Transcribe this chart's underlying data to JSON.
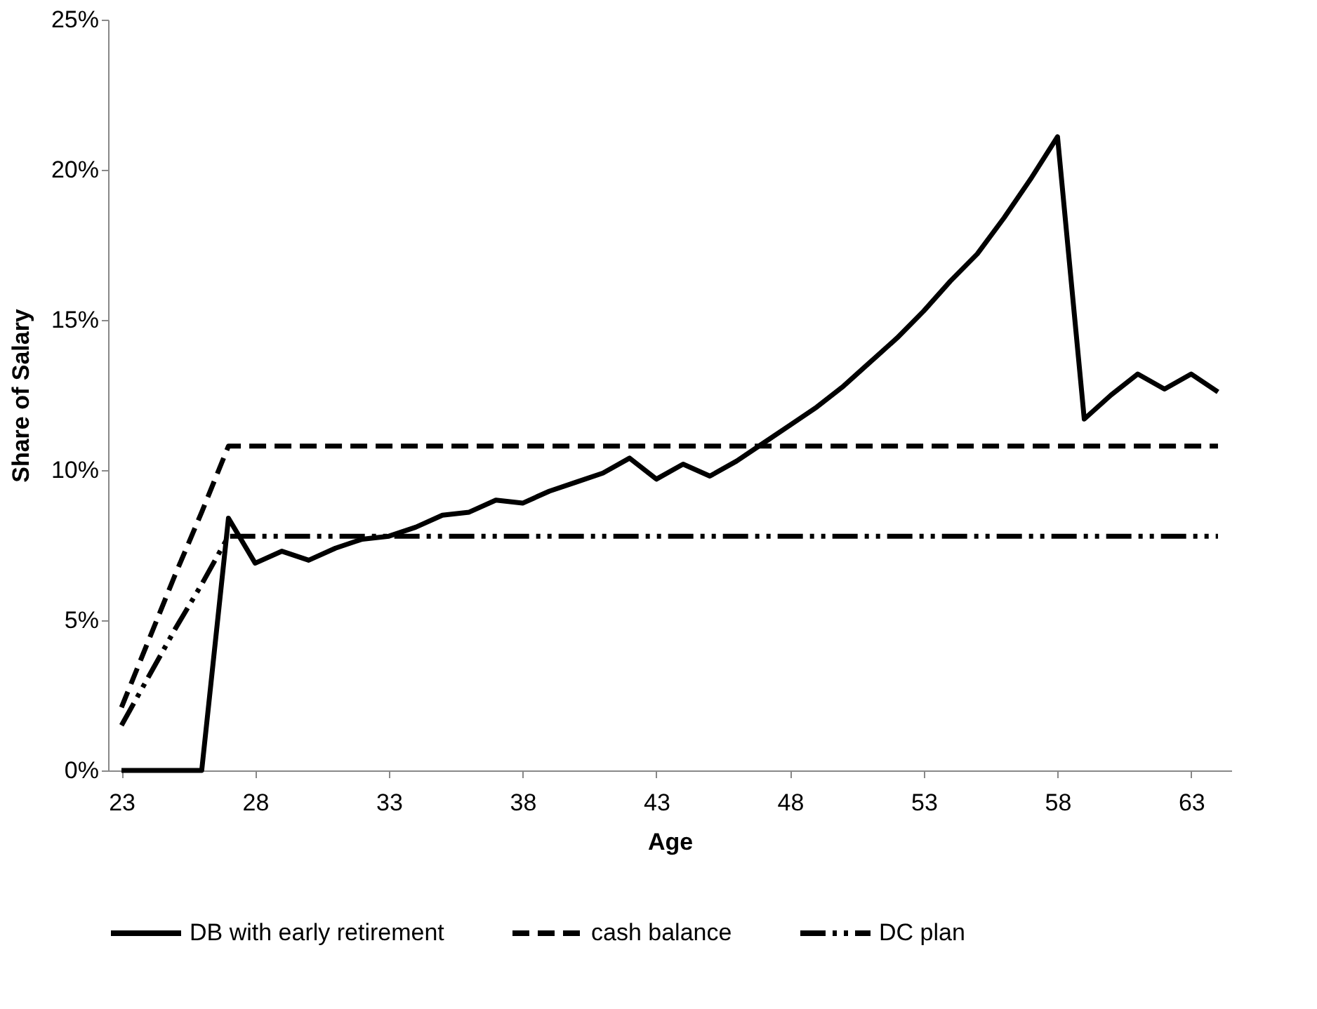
{
  "chart_data": {
    "type": "line",
    "xlabel": "Age",
    "ylabel": "Share of Salary",
    "x": [
      23,
      24,
      25,
      26,
      27,
      28,
      29,
      30,
      31,
      32,
      33,
      34,
      35,
      36,
      37,
      38,
      39,
      40,
      41,
      42,
      43,
      44,
      45,
      46,
      47,
      48,
      49,
      50,
      51,
      52,
      53,
      54,
      55,
      56,
      57,
      58,
      59,
      60,
      61,
      62,
      63,
      64
    ],
    "series": [
      {
        "name": "DB with early retirement",
        "color": "#000000",
        "line_style": "solid",
        "values": [
          0,
          0,
          0,
          0,
          8.4,
          6.9,
          7.3,
          7.0,
          7.4,
          7.7,
          7.8,
          8.1,
          8.5,
          8.6,
          9.0,
          8.9,
          9.3,
          9.6,
          9.9,
          10.4,
          9.7,
          10.2,
          9.8,
          10.3,
          10.9,
          11.5,
          12.1,
          12.8,
          13.6,
          14.4,
          15.3,
          16.3,
          17.2,
          18.4,
          19.7,
          21.1,
          11.7,
          12.5,
          13.2,
          12.7,
          13.2,
          12.6
        ]
      },
      {
        "name": "cash balance",
        "color": "#000000",
        "line_style": "dashed",
        "values": [
          2.1,
          4.3,
          6.5,
          8.6,
          10.8,
          10.8,
          10.8,
          10.8,
          10.8,
          10.8,
          10.8,
          10.8,
          10.8,
          10.8,
          10.8,
          10.8,
          10.8,
          10.8,
          10.8,
          10.8,
          10.8,
          10.8,
          10.8,
          10.8,
          10.8,
          10.8,
          10.8,
          10.8,
          10.8,
          10.8,
          10.8,
          10.8,
          10.8,
          10.8,
          10.8,
          10.8,
          10.8,
          10.8,
          10.8,
          10.8,
          10.8,
          10.8
        ]
      },
      {
        "name": "DC plan",
        "color": "#000000",
        "line_style": "dashdotdot",
        "values": [
          1.5,
          3.1,
          4.7,
          6.2,
          7.8,
          7.8,
          7.8,
          7.8,
          7.8,
          7.8,
          7.8,
          7.8,
          7.8,
          7.8,
          7.8,
          7.8,
          7.8,
          7.8,
          7.8,
          7.8,
          7.8,
          7.8,
          7.8,
          7.8,
          7.8,
          7.8,
          7.8,
          7.8,
          7.8,
          7.8,
          7.8,
          7.8,
          7.8,
          7.8,
          7.8,
          7.8,
          7.8,
          7.8,
          7.8,
          7.8,
          7.8,
          7.8
        ]
      }
    ],
    "xlim": [
      22.5,
      64.5
    ],
    "xticks": [
      23,
      28,
      33,
      38,
      43,
      48,
      53,
      58,
      63
    ],
    "ylim": [
      0,
      25
    ],
    "yticks": [
      {
        "value": 0,
        "label": "0%"
      },
      {
        "value": 5,
        "label": "5%"
      },
      {
        "value": 10,
        "label": "10%"
      },
      {
        "value": 15,
        "label": "15%"
      },
      {
        "value": 20,
        "label": "20%"
      },
      {
        "value": 25,
        "label": "25%"
      }
    ],
    "grid": false,
    "legend": "bottom",
    "marker": "none"
  }
}
